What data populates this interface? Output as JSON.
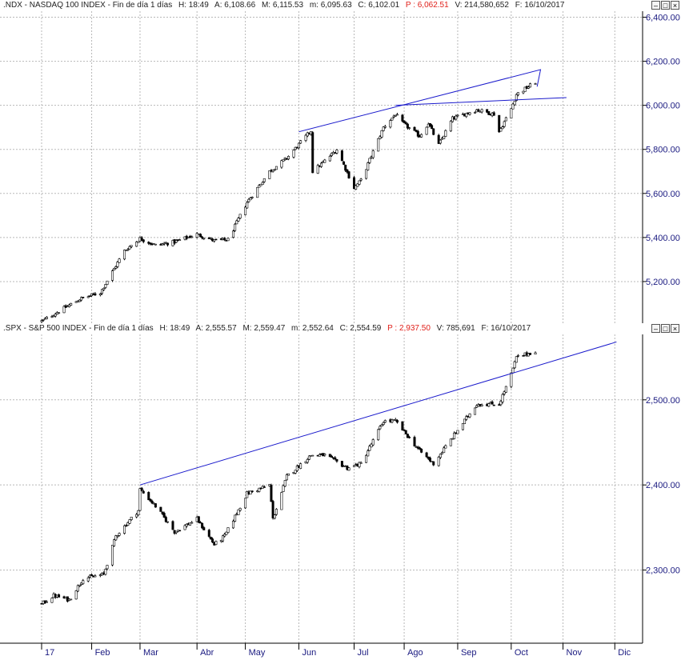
{
  "colors": {
    "axis_text": "#1a1a80",
    "trend": "#1a1acc",
    "candle": "#000000",
    "grid": "#b8b8b8"
  },
  "months": [
    "17",
    "Feb",
    "Mar",
    "Abr",
    "May",
    "Jun",
    "Jul",
    "Ago",
    "Sep",
    "Oct",
    "Nov",
    "Dic"
  ],
  "window_buttons": [
    "–",
    "□",
    "×"
  ],
  "chart_data": [
    {
      "type": "candlestick",
      "header": {
        "symbol": ".NDX - NASDAQ 100 INDEX - Fin de día 1 días",
        "time": "H: 18:49",
        "open": "A: 6,108.66",
        "high": "M: 6,115.53",
        "low": "m: 6,095.63",
        "close": "C: 6,102.01",
        "p": "P : 6,062.51",
        "volume": "V: 214,580,652",
        "date": "F: 16/10/2017"
      },
      "y_ticks": [
        "6,400.00",
        "6,200.00",
        "6,000.00",
        "5,800.00",
        "5,600.00",
        "5,400.00",
        "5,200.00"
      ],
      "ylim": [
        5040,
        6420
      ],
      "x_range": [
        "2017-01-03",
        "2017-12-31"
      ],
      "keypoints": [
        [
          "2017-01-03",
          5020
        ],
        [
          "2017-01-13",
          5065
        ],
        [
          "2017-01-25",
          5120
        ],
        [
          "2017-02-06",
          5150
        ],
        [
          "2017-02-20",
          5340
        ],
        [
          "2017-03-01",
          5395
        ],
        [
          "2017-03-10",
          5365
        ],
        [
          "2017-03-21",
          5380
        ],
        [
          "2017-04-03",
          5415
        ],
        [
          "2017-04-13",
          5385
        ],
        [
          "2017-04-21",
          5390
        ],
        [
          "2017-05-02",
          5560
        ],
        [
          "2017-05-15",
          5700
        ],
        [
          "2017-05-25",
          5760
        ],
        [
          "2017-06-08",
          5885
        ],
        [
          "2017-06-09",
          5700
        ],
        [
          "2017-06-15",
          5740
        ],
        [
          "2017-06-23",
          5800
        ],
        [
          "2017-07-03",
          5625
        ],
        [
          "2017-07-07",
          5660
        ],
        [
          "2017-07-20",
          5900
        ],
        [
          "2017-07-27",
          5960
        ],
        [
          "2017-07-31",
          5920
        ],
        [
          "2017-08-10",
          5860
        ],
        [
          "2017-08-15",
          5920
        ],
        [
          "2017-08-21",
          5820
        ],
        [
          "2017-08-29",
          5940
        ],
        [
          "2017-09-12",
          5980
        ],
        [
          "2017-09-22",
          5960
        ],
        [
          "2017-09-25",
          5880
        ],
        [
          "2017-10-02",
          5985
        ],
        [
          "2017-10-05",
          6050
        ],
        [
          "2017-10-16",
          6105
        ]
      ],
      "trendlines": [
        [
          [
            "2017-06-01",
            5880
          ],
          [
            "2017-10-19",
            6162
          ],
          [
            "2017-10-17",
            6085
          ]
        ],
        [
          [
            "2017-07-27",
            6000
          ],
          [
            "2017-11-03",
            6035
          ]
        ]
      ]
    },
    {
      "type": "candlestick",
      "header": {
        "symbol": ".SPX - S&P 500 INDEX - Fin de día 1 días",
        "time": "H: 18:49",
        "open": "A: 2,555.57",
        "high": "M: 2,559.47",
        "low": "m: 2,552.64",
        "close": "C: 2,554.59",
        "p": "P : 2,937.50",
        "volume": "V: 785,691",
        "date": "F: 16/10/2017"
      },
      "y_ticks": [
        "2,500.00",
        "2,400.00",
        "2,300.00"
      ],
      "ylim": [
        2215,
        2575
      ],
      "x_range": [
        "2017-01-03",
        "2017-12-31"
      ],
      "keypoints": [
        [
          "2017-01-03",
          2260
        ],
        [
          "2017-01-10",
          2270
        ],
        [
          "2017-01-19",
          2265
        ],
        [
          "2017-01-27",
          2290
        ],
        [
          "2017-02-08",
          2295
        ],
        [
          "2017-02-15",
          2340
        ],
        [
          "2017-02-28",
          2370
        ],
        [
          "2017-03-01",
          2395
        ],
        [
          "2017-03-10",
          2375
        ],
        [
          "2017-03-21",
          2345
        ],
        [
          "2017-04-03",
          2360
        ],
        [
          "2017-04-13",
          2330
        ],
        [
          "2017-04-19",
          2340
        ],
        [
          "2017-05-02",
          2390
        ],
        [
          "2017-05-15",
          2400
        ],
        [
          "2017-05-17",
          2360
        ],
        [
          "2017-05-25",
          2410
        ],
        [
          "2017-06-08",
          2435
        ],
        [
          "2017-06-16",
          2435
        ],
        [
          "2017-06-29",
          2420
        ],
        [
          "2017-07-07",
          2425
        ],
        [
          "2017-07-20",
          2475
        ],
        [
          "2017-07-27",
          2475
        ],
        [
          "2017-08-10",
          2440
        ],
        [
          "2017-08-18",
          2425
        ],
        [
          "2017-08-25",
          2445
        ],
        [
          "2017-09-12",
          2495
        ],
        [
          "2017-09-25",
          2495
        ],
        [
          "2017-10-02",
          2530
        ],
        [
          "2017-10-05",
          2550
        ],
        [
          "2017-10-16",
          2557
        ]
      ],
      "trendlines": [
        [
          [
            "2017-03-01",
            2400
          ],
          [
            "2017-12-02",
            2568
          ]
        ]
      ]
    }
  ]
}
